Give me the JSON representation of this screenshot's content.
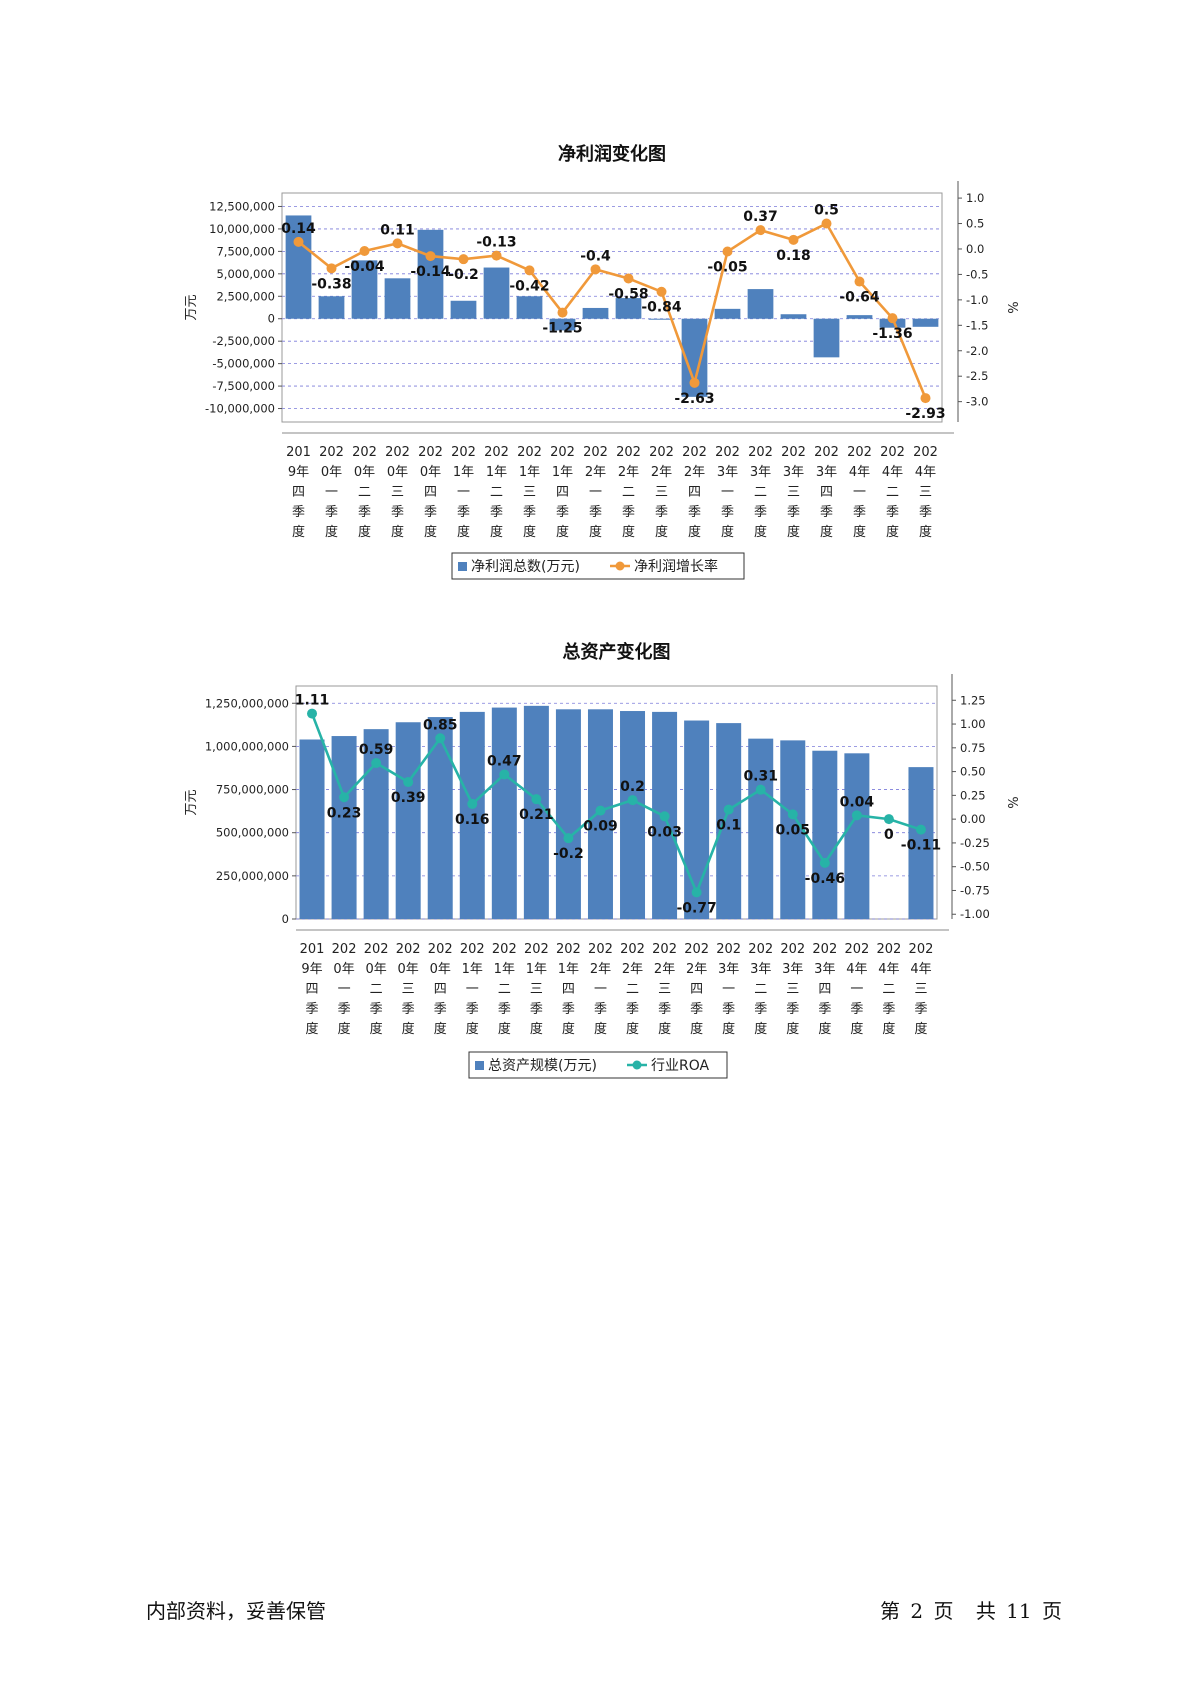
{
  "footer": {
    "left_text": "内部资料，妥善保管",
    "page_label_prefix": "第",
    "page_number": "2",
    "page_label_suffix": "页",
    "total_prefix": "共",
    "total_pages": "11",
    "total_suffix": "页"
  },
  "colors": {
    "bar": "#4f81bd",
    "line1": "#f0993a",
    "line2": "#27b3a7",
    "grid": "#7b7bd9"
  },
  "chart_data": [
    {
      "type": "bar",
      "title": "净利润变化图",
      "ylabel": "万元",
      "y2label": "%",
      "ylim": [
        -11500000,
        14000000
      ],
      "y2lim": [
        -3.4,
        1.1
      ],
      "yticks": [
        "12,500,000",
        "10,000,000",
        "7,500,000",
        "5,000,000",
        "2,500,000",
        "0",
        "-2,500,000",
        "-5,000,000",
        "-7,500,000",
        "-10,000,000"
      ],
      "yticks_values": [
        12500000,
        10000000,
        7500000,
        5000000,
        2500000,
        0,
        -2500000,
        -5000000,
        -7500000,
        -10000000
      ],
      "y2ticks": [
        "1.0",
        "0.5",
        "0.0",
        "-0.5",
        "-1.0",
        "-1.5",
        "-2.0",
        "-2.5",
        "-3.0"
      ],
      "y2ticks_values": [
        1.0,
        0.5,
        0.0,
        -0.5,
        -1.0,
        -1.5,
        -2.0,
        -2.5,
        -3.0
      ],
      "categories": [
        [
          "201",
          "9年",
          "四",
          "季",
          "度"
        ],
        [
          "202",
          "0年",
          "一",
          "季",
          "度"
        ],
        [
          "202",
          "0年",
          "二",
          "季",
          "度"
        ],
        [
          "202",
          "0年",
          "三",
          "季",
          "度"
        ],
        [
          "202",
          "0年",
          "四",
          "季",
          "度"
        ],
        [
          "202",
          "1年",
          "一",
          "季",
          "度"
        ],
        [
          "202",
          "1年",
          "二",
          "季",
          "度"
        ],
        [
          "202",
          "1年",
          "三",
          "季",
          "度"
        ],
        [
          "202",
          "1年",
          "四",
          "季",
          "度"
        ],
        [
          "202",
          "2年",
          "一",
          "季",
          "度"
        ],
        [
          "202",
          "2年",
          "二",
          "季",
          "度"
        ],
        [
          "202",
          "2年",
          "三",
          "季",
          "度"
        ],
        [
          "202",
          "2年",
          "四",
          "季",
          "度"
        ],
        [
          "202",
          "3年",
          "一",
          "季",
          "度"
        ],
        [
          "202",
          "3年",
          "二",
          "季",
          "度"
        ],
        [
          "202",
          "3年",
          "三",
          "季",
          "度"
        ],
        [
          "202",
          "3年",
          "四",
          "季",
          "度"
        ],
        [
          "202",
          "4年",
          "一",
          "季",
          "度"
        ],
        [
          "202",
          "4年",
          "二",
          "季",
          "度"
        ],
        [
          "202",
          "4年",
          "三",
          "季",
          "度"
        ]
      ],
      "series": [
        {
          "name": "净利润总数(万元)",
          "kind": "bar",
          "values": [
            11500000,
            2500000,
            6500000,
            4500000,
            9900000,
            2000000,
            5700000,
            2500000,
            -1300000,
            1200000,
            2300000,
            0,
            -8700000,
            1100000,
            3300000,
            500000,
            -4300000,
            400000,
            -1000000,
            -900000
          ]
        },
        {
          "name": "净利润增长率",
          "kind": "line",
          "values": [
            0.14,
            -0.38,
            -0.04,
            0.11,
            -0.14,
            -0.2,
            -0.13,
            -0.42,
            -1.25,
            -0.4,
            -0.58,
            -0.84,
            -2.63,
            -0.05,
            0.37,
            0.18,
            0.5,
            -0.64,
            -1.36,
            -2.93
          ],
          "labels": [
            "0.14",
            "-0.38",
            "-0.04",
            "0.11",
            "-0.14",
            "-0.2",
            "-0.13",
            "-0.42",
            "-1.25",
            "-0.4",
            "-0.58",
            "-0.84",
            "-2.63",
            "-0.05",
            "0.37",
            "0.18",
            "0.5",
            "-0.64",
            "-1.36",
            "-2.93"
          ]
        }
      ],
      "legend": "bottom"
    },
    {
      "type": "bar",
      "title": "总资产变化图",
      "ylabel": "万元",
      "y2label": "%",
      "ylim": [
        0,
        1350000000
      ],
      "y2lim": [
        -1.05,
        1.4
      ],
      "yticks": [
        "1,250,000,000",
        "1,000,000,000",
        "750,000,000",
        "500,000,000",
        "250,000,000",
        "0"
      ],
      "yticks_values": [
        1250000000,
        1000000000,
        750000000,
        500000000,
        250000000,
        0
      ],
      "y2ticks": [
        "1.25",
        "1.00",
        "0.75",
        "0.50",
        "0.25",
        "0.00",
        "-0.25",
        "-0.50",
        "-0.75",
        "-1.00"
      ],
      "y2ticks_values": [
        1.25,
        1.0,
        0.75,
        0.5,
        0.25,
        0.0,
        -0.25,
        -0.5,
        -0.75,
        -1.0
      ],
      "categories": [
        [
          "201",
          "9年",
          "四",
          "季",
          "度"
        ],
        [
          "202",
          "0年",
          "一",
          "季",
          "度"
        ],
        [
          "202",
          "0年",
          "二",
          "季",
          "度"
        ],
        [
          "202",
          "0年",
          "三",
          "季",
          "度"
        ],
        [
          "202",
          "0年",
          "四",
          "季",
          "度"
        ],
        [
          "202",
          "1年",
          "一",
          "季",
          "度"
        ],
        [
          "202",
          "1年",
          "二",
          "季",
          "度"
        ],
        [
          "202",
          "1年",
          "三",
          "季",
          "度"
        ],
        [
          "202",
          "1年",
          "四",
          "季",
          "度"
        ],
        [
          "202",
          "2年",
          "一",
          "季",
          "度"
        ],
        [
          "202",
          "2年",
          "二",
          "季",
          "度"
        ],
        [
          "202",
          "2年",
          "三",
          "季",
          "度"
        ],
        [
          "202",
          "2年",
          "四",
          "季",
          "度"
        ],
        [
          "202",
          "3年",
          "一",
          "季",
          "度"
        ],
        [
          "202",
          "3年",
          "二",
          "季",
          "度"
        ],
        [
          "202",
          "3年",
          "三",
          "季",
          "度"
        ],
        [
          "202",
          "3年",
          "四",
          "季",
          "度"
        ],
        [
          "202",
          "4年",
          "一",
          "季",
          "度"
        ],
        [
          "202",
          "4年",
          "二",
          "季",
          "度"
        ],
        [
          "202",
          "4年",
          "三",
          "季",
          "度"
        ]
      ],
      "series": [
        {
          "name": "总资产规模(万元)",
          "kind": "bar",
          "values": [
            1040000000,
            1060000000,
            1100000000,
            1140000000,
            1170000000,
            1200000000,
            1225000000,
            1235000000,
            1215000000,
            1215000000,
            1205000000,
            1200000000,
            1150000000,
            1135000000,
            1045000000,
            1035000000,
            975000000,
            960000000,
            null,
            880000000
          ]
        },
        {
          "name": "行业ROA",
          "kind": "line",
          "values": [
            1.11,
            0.23,
            0.59,
            0.39,
            0.85,
            0.16,
            0.47,
            0.21,
            -0.2,
            0.09,
            0.2,
            0.03,
            -0.77,
            0.1,
            0.31,
            0.05,
            -0.46,
            0.04,
            0.0,
            -0.11
          ],
          "labels": [
            "1.11",
            "0.23",
            "0.59",
            "0.39",
            "0.85",
            "0.16",
            "0.47",
            "0.21",
            "-0.2",
            "0.09",
            "0.2",
            "0.03",
            "-0.77",
            "0.1",
            "0.31",
            "0.05",
            "-0.46",
            "0.04",
            "0",
            "-0.11"
          ]
        }
      ],
      "legend": "bottom"
    }
  ]
}
